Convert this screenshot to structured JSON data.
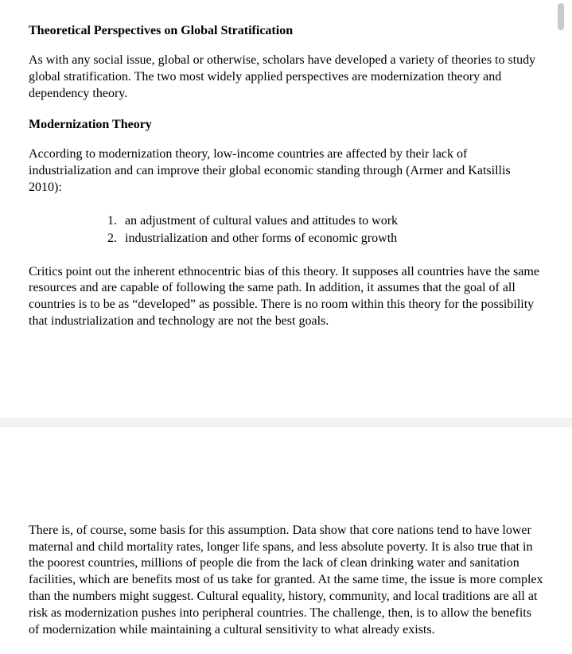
{
  "colors": {
    "background": "#ffffff",
    "text": "#000000",
    "gap_fill": "#f3f3f3",
    "gap_border": "#ececec",
    "scrollbar_thumb": "#c9c9c9"
  },
  "typography": {
    "family": "Times New Roman",
    "body_size_pt": 12,
    "heading_size_pt": 12,
    "heading_weight": "bold",
    "line_height": 1.3
  },
  "section1": {
    "heading": "Theoretical Perspectives on Global Stratification",
    "intro": "As with any social issue, global or otherwise, scholars have developed a variety of theories to study global stratification. The two most widely applied perspectives are modernization theory and dependency theory."
  },
  "section2": {
    "heading": "Modernization Theory",
    "intro": "According to modernization theory, low-income countries are affected by their lack of industrialization and can improve their global economic standing through (Armer and Katsillis 2010):",
    "list": [
      "an adjustment of cultural values and attitudes to work",
      "industrialization and other forms of economic growth"
    ],
    "critique": "Critics point out the inherent ethnocentric bias of this theory. It supposes all countries have the same resources and are capable of following the same path. In addition, it assumes that the goal of all countries is to be as “developed” as possible. There is no room within this theory for the possibility that industrialization and technology are not the best goals."
  },
  "section3": {
    "continuation": "There is, of course, some basis for this assumption. Data show that core nations tend to have lower maternal and child mortality rates, longer life spans, and less absolute poverty. It is also true that in the poorest countries, millions of people die from the lack of clean drinking water and sanitation facilities, which are benefits most of us take for granted. At the same time, the issue is more complex than the numbers might suggest. Cultural equality, history, community, and local traditions are all at risk as modernization pushes into peripheral countries. The challenge, then, is to allow the benefits of modernization while maintaining a cultural sensitivity to what already exists."
  }
}
